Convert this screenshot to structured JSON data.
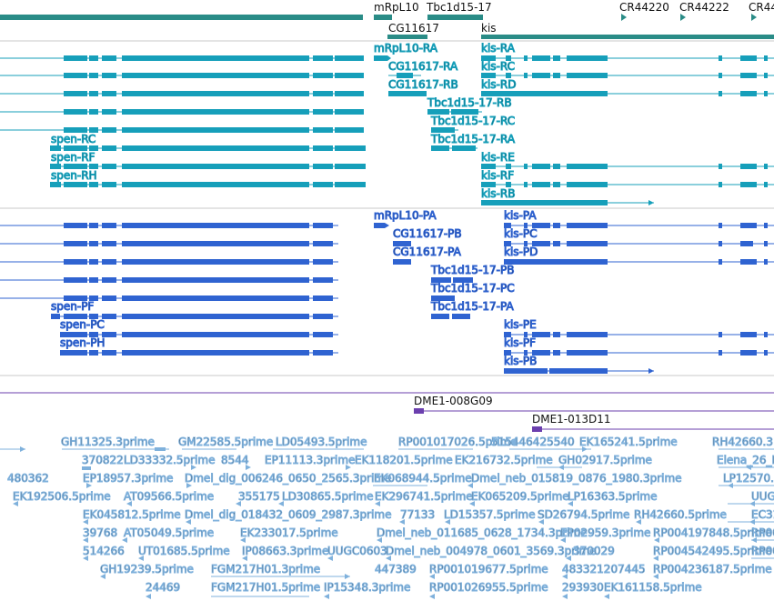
{
  "colors": {
    "gene": "#2a8c87",
    "transcript_cyan": "#169fba",
    "transcript_blue": "#2f63d1",
    "clone_purple": "#6b3fae",
    "est_light": "#7fb1dc",
    "separator": "#c8c8c8",
    "text": "#111111"
  },
  "gene_track": {
    "labels": {
      "mrpl10": "mRpL10",
      "tbc1d15": "Tbc1d15-17",
      "cr44220": "CR44220",
      "cr44222": "CR44222",
      "cr44_partial": "CR44",
      "cg11617": "CG11617",
      "kis": "kis"
    }
  },
  "cyan_track": {
    "labels": {
      "mrpl10_ra": "mRpL10-RA",
      "kis_ra": "kis-RA",
      "cg11617_ra": "CG11617-RA",
      "kis_rc": "kis-RC",
      "cg11617_rb": "CG11617-RB",
      "kis_rd": "kis-RD",
      "tbc_rb": "Tbc1d15-17-RB",
      "tbc_rc": "Tbc1d15-17-RC",
      "spen_rc": "spen-RC",
      "tbc_ra": "Tbc1d15-17-RA",
      "spen_rf": "spen-RF",
      "kis_re": "kis-RE",
      "spen_rh": "spen-RH",
      "kis_rf": "kis-RF",
      "kis_rb": "kis-RB"
    }
  },
  "blue_track": {
    "labels": {
      "mrpl10_pa": "mRpL10-PA",
      "kis_pa": "kis-PA",
      "cg11617_pb": "CG11617-PB",
      "kis_pc": "kis-PC",
      "cg11617_pa": "CG11617-PA",
      "kis_pd": "kis-PD",
      "tbc_pb": "Tbc1d15-17-PB",
      "tbc_pc": "Tbc1d15-17-PC",
      "spen_pf": "spen-PF",
      "tbc_pa": "Tbc1d15-17-PA",
      "spen_pc": "spen-PC",
      "kis_pe": "kis-PE",
      "spen_ph": "spen-PH",
      "kis_pf": "kis-PF",
      "kis_pb": "kis-PB"
    }
  },
  "clone_track": {
    "labels": {
      "dme1_008g09": "DME1-008G09",
      "dme1_013d11": "DME1-013D11"
    }
  },
  "est_track": {
    "rows": [
      [
        "GH11325.3prime",
        "GM22585.5prime",
        "LD05493.5prime",
        "RP001017026.5prime",
        "515446425540",
        "EK165241.5prime",
        "RH42660.3"
      ],
      [
        "370822",
        "LD33332.5prime",
        "8544",
        "EP11113.3prime",
        "EK118201.5prime",
        "EK216732.5prime",
        "GH02917.5prime",
        "Elena_26_H"
      ],
      [
        "480362",
        "EP18957.3prime",
        "Dmel_dig_006246_0650_2565.3prime",
        "EK068944.5prime",
        "Dmel_neb_015819_0876_1980.3prime",
        "LP12570."
      ],
      [
        "EK192506.5prime",
        "AT09566.5prime",
        "355175",
        "LD30865.5prime",
        "EK296741.5prime",
        "EK065209.5prime",
        "LP16363.5prime",
        "UUGC"
      ],
      [
        "EK045812.5prime",
        "Dmel_dig_018432_0609_2987.3prime",
        "77133",
        "LD15357.5prime",
        "SD26794.5prime",
        "RH42660.5prime",
        "EC31"
      ],
      [
        "39768",
        "AT05049.5prime",
        "EK233017.5prime",
        "Dmel_neb_011685_0628_1734.3prime",
        "EP02959.3prime",
        "RP004197848.5prime",
        "RP000"
      ],
      [
        "514266",
        "UT01685.5prime",
        "IP08663.3prime",
        "UUGC0603",
        "Dmel_neb_004978_0601_3569.3prime",
        "370029",
        "RP004542495.5prime",
        "RP00"
      ],
      [
        "GH19239.5prime",
        "FGM217H01.3prime",
        "447389",
        "RP001019677.5prime",
        "483321207445",
        "RP004236187.5prime"
      ],
      [
        "24469",
        "FGM217H01.5prime",
        "IP15348.3prime",
        "RP001026955.5prime",
        "293930",
        "EK161158.5prime"
      ]
    ]
  }
}
